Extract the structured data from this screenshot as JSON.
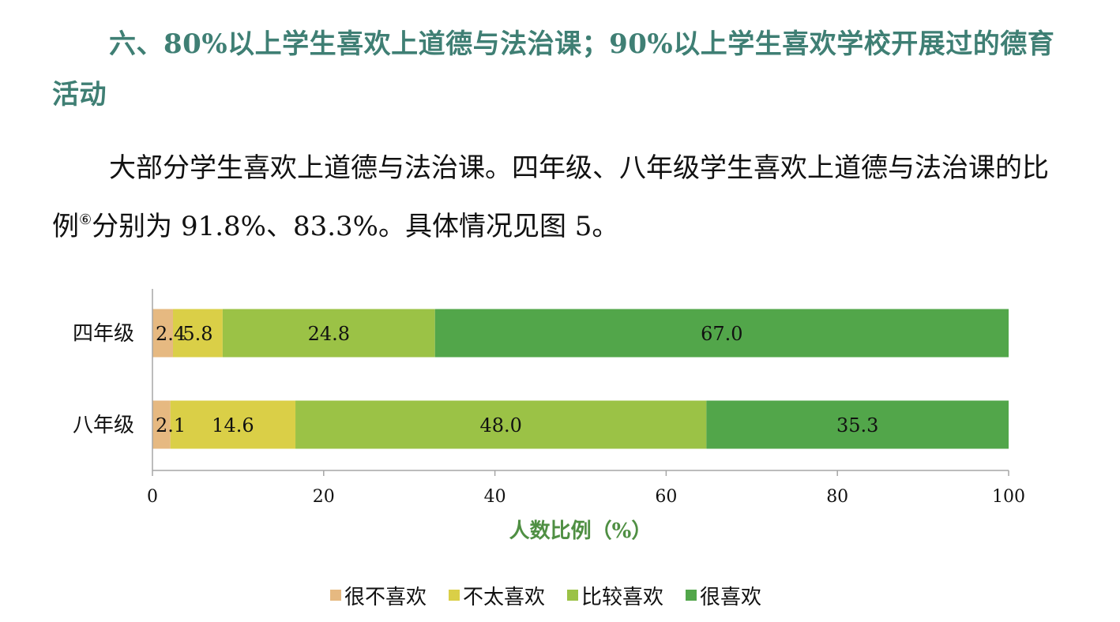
{
  "heading": "六、80%以上学生喜欢上道德与法治课；90%以上学生喜欢学校开展过的德育活动",
  "paragraph": {
    "part1": "大部分学生喜欢上道德与法治课。四年级、八年级学生喜欢上道德与法治课的比例",
    "footnote": "⑥",
    "part2": "分别为 91.8%、83.3%。具体情况见图 5。"
  },
  "chart_data": {
    "type": "bar",
    "orientation": "horizontal",
    "stacked": true,
    "categories": [
      "四年级",
      "八年级"
    ],
    "series": [
      {
        "name": "很不喜欢",
        "values": [
          2.4,
          2.1
        ],
        "color": "#e6b981"
      },
      {
        "name": "不太喜欢",
        "values": [
          5.8,
          14.6
        ],
        "color": "#dacf47"
      },
      {
        "name": "比较喜欢",
        "values": [
          24.8,
          48.0
        ],
        "color": "#9bc246"
      },
      {
        "name": "很喜欢",
        "values": [
          67.0,
          35.3
        ],
        "color": "#52a64a"
      }
    ],
    "xlabel": "人数比例（%）",
    "xlim": [
      0,
      100
    ],
    "xticks": [
      "0",
      "20",
      "40",
      "60",
      "80",
      "100"
    ],
    "legend_position": "bottom",
    "axis_label_color": "#4f8f43"
  }
}
